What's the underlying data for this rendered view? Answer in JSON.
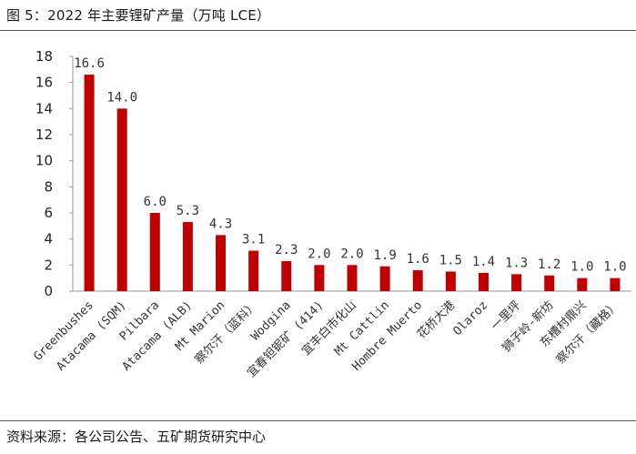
{
  "title": "图 5：2022 年主要锂矿产量（万吨 LCE）",
  "source": "资料来源：各公司公告、五矿期货研究中心",
  "colors": {
    "bar": "#C00000",
    "axis": "#999999",
    "rule": "#555555"
  },
  "chart_data": {
    "type": "bar",
    "categories": [
      "Greenbushes",
      "Atacama (SQM)",
      "Pilbara",
      "Atacama (ALB)",
      "Mt Marion",
      "察尔汗（蓝科）",
      "Wodgina",
      "宜春钽铌矿 (414)",
      "宜丰白市化山",
      "Mt Cattlin",
      "Hombre Muerto",
      "花桥大港",
      "Olaroz",
      "一里坪",
      "狮子岭-新坊",
      "东槽村鼎兴",
      "察尔汗（藏格）"
    ],
    "values": [
      16.6,
      14.0,
      6.0,
      5.3,
      4.3,
      3.1,
      2.3,
      2.0,
      2.0,
      1.9,
      1.6,
      1.5,
      1.4,
      1.3,
      1.2,
      1.0,
      1.0
    ],
    "value_labels": [
      "16.6",
      "14.0",
      "6.0",
      "5.3",
      "4.3",
      "3.1",
      "2.3",
      "2.0",
      "2.0",
      "1.9",
      "1.6",
      "1.5",
      "1.4",
      "1.3",
      "1.2",
      "1.0",
      "1.0"
    ],
    "yticks": [
      "0",
      "2",
      "4",
      "6",
      "8",
      "10",
      "12",
      "14",
      "16",
      "18"
    ],
    "ylim": [
      0,
      18
    ],
    "grid": false,
    "legend": "none"
  }
}
